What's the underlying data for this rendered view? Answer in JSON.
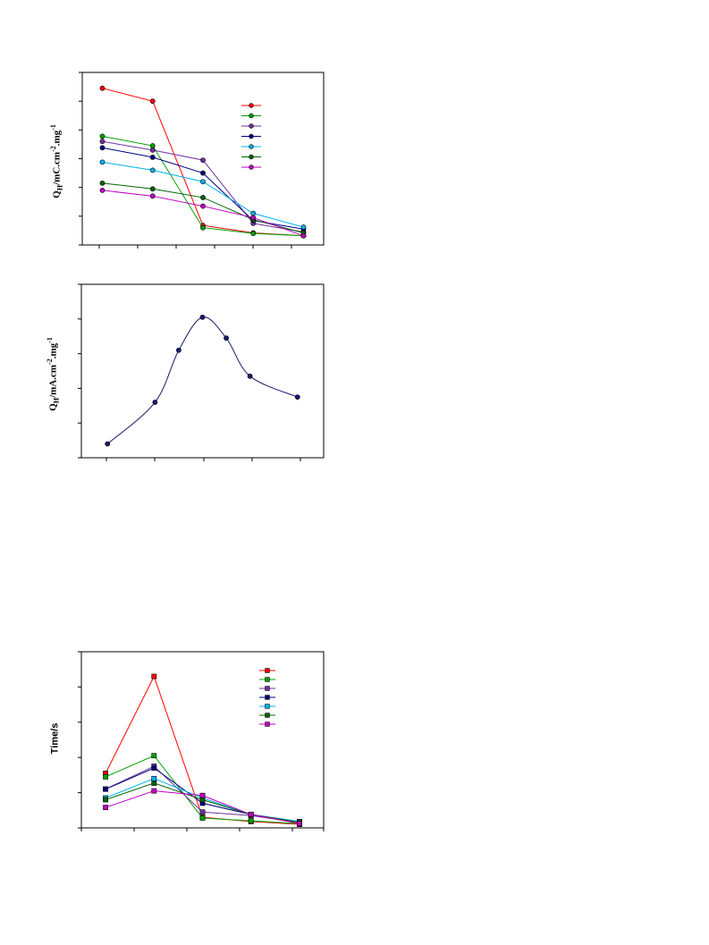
{
  "chart_data": [
    {
      "type": "line",
      "ylabel": "Q_H/mC.cm^-2.mg^-1",
      "x": [
        1,
        2,
        3,
        4,
        5
      ],
      "ylim": [
        0,
        6
      ],
      "xlim": [
        0.6,
        5.4
      ],
      "legend_position": "top-right",
      "series": [
        {
          "color": "#ff0000",
          "values": [
            5.45,
            5.0,
            0.68,
            0.42,
            0.32
          ]
        },
        {
          "color": "#00a000",
          "values": [
            3.78,
            3.45,
            0.6,
            0.4,
            0.32
          ]
        },
        {
          "color": "#7030a0",
          "values": [
            3.6,
            3.3,
            2.95,
            0.75,
            0.45
          ]
        },
        {
          "color": "#000080",
          "values": [
            3.38,
            3.05,
            2.5,
            0.85,
            0.55
          ]
        },
        {
          "color": "#00b0f0",
          "values": [
            2.88,
            2.6,
            2.2,
            1.1,
            0.62
          ]
        },
        {
          "color": "#006400",
          "values": [
            2.15,
            1.95,
            1.65,
            0.88,
            0.42
          ]
        },
        {
          "color": "#c000c0",
          "values": [
            1.9,
            1.7,
            1.35,
            0.95,
            0.32
          ]
        }
      ]
    },
    {
      "type": "line",
      "ylabel": "Q_H/mA.cm^-2.mg^-1",
      "x": [
        1,
        2,
        2.5,
        3,
        3.5,
        4,
        5
      ],
      "ylim": [
        0,
        5
      ],
      "xlim": [
        0.45,
        5.55
      ],
      "series": [
        {
          "color": "#191970",
          "values": [
            0.4,
            1.6,
            3.1,
            4.05,
            3.45,
            2.35,
            1.75
          ]
        }
      ]
    },
    {
      "type": "line",
      "ylabel": "Time/s",
      "x": [
        1,
        2,
        3,
        4,
        5
      ],
      "ylim": [
        0,
        5
      ],
      "xlim": [
        0.5,
        5.5
      ],
      "legend_position": "top-right",
      "series": [
        {
          "color": "#ff0000",
          "values": [
            1.55,
            4.3,
            0.3,
            0.18,
            0.1
          ]
        },
        {
          "color": "#00a000",
          "values": [
            1.45,
            2.05,
            0.28,
            0.2,
            0.12
          ]
        },
        {
          "color": "#7030a0",
          "values": [
            1.1,
            1.75,
            0.45,
            0.35,
            0.15
          ]
        },
        {
          "color": "#000080",
          "values": [
            1.1,
            1.7,
            0.7,
            0.38,
            0.18
          ]
        },
        {
          "color": "#00b0f0",
          "values": [
            0.85,
            1.4,
            0.85,
            0.38,
            0.18
          ]
        },
        {
          "color": "#006400",
          "values": [
            0.8,
            1.27,
            0.8,
            0.38,
            0.16
          ]
        },
        {
          "color": "#c000c0",
          "values": [
            0.58,
            1.05,
            0.92,
            0.38,
            0.12
          ]
        }
      ]
    }
  ]
}
